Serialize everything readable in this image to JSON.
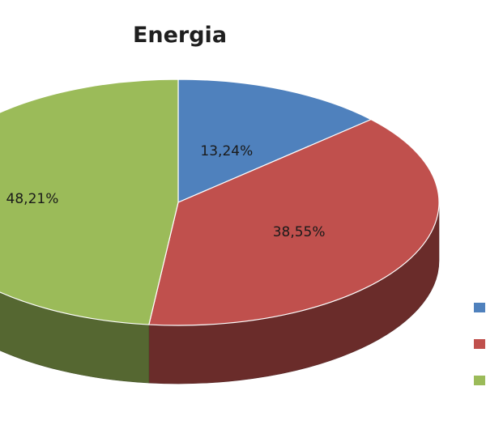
{
  "chart_data": {
    "type": "pie",
    "style": "3d",
    "title": "Energia",
    "series": [
      {
        "value": 13.24,
        "label": "13,24%",
        "color": "#4f81bd"
      },
      {
        "value": 38.55,
        "label": "38,55%",
        "color": "#c0504d"
      },
      {
        "value": 48.21,
        "label": "48,21%",
        "color": "#9bbb59"
      }
    ],
    "legend_position": "right",
    "legend_labels_visible": false
  }
}
